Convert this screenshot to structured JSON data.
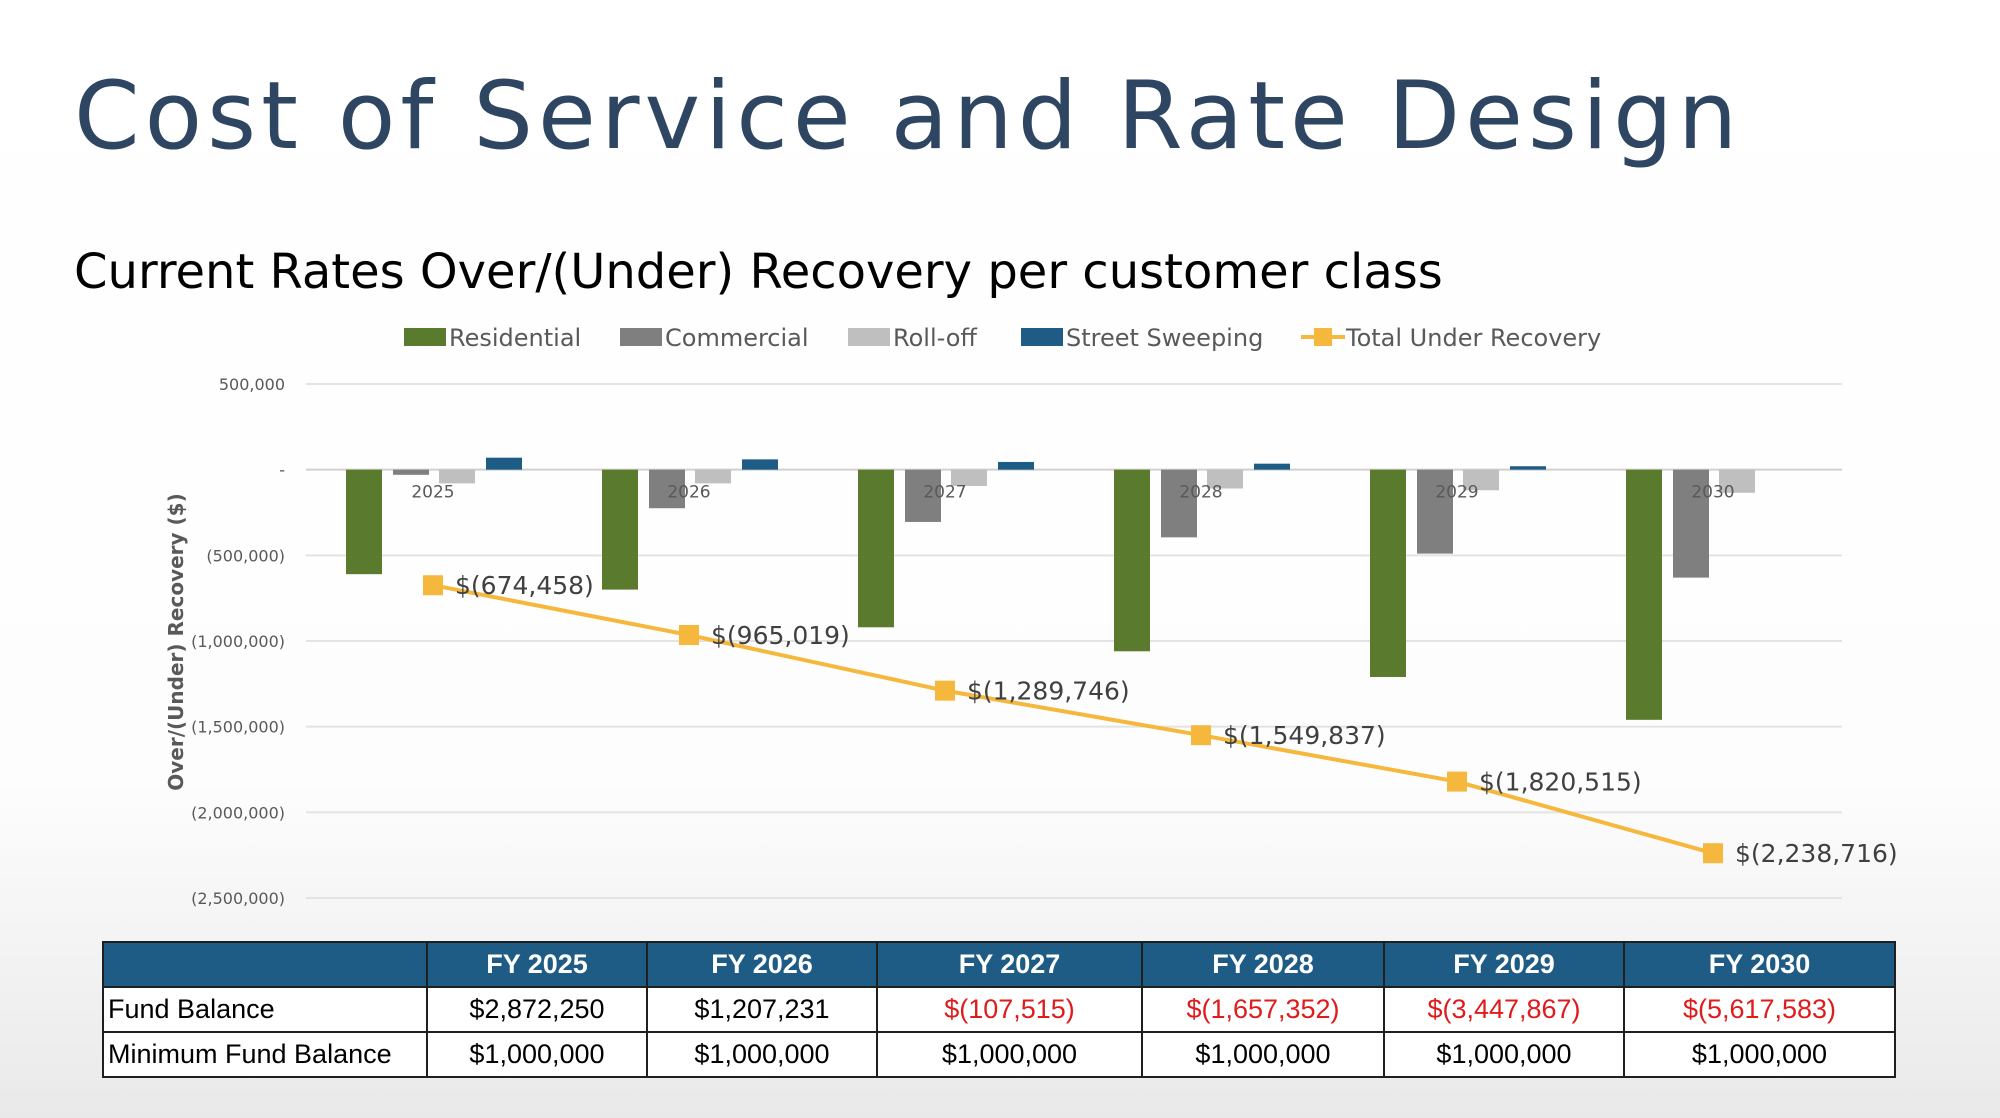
{
  "slide": {
    "title": "Cost of Service and Rate Design",
    "subtitle": "Current Rates Over/(Under) Recovery per customer class"
  },
  "colors": {
    "title": "#2f4663",
    "residential": "#5a7a2e",
    "commercial": "#7f7f7f",
    "rolloff": "#bfbfbf",
    "street_sweeping": "#1f5c85",
    "total": "#f5b83d",
    "table_header": "#1f5c85",
    "negative_text": "#e01b1b"
  },
  "chart_data": {
    "type": "bar",
    "title": "Current Rates Over/(Under) Recovery per customer class",
    "ylabel": "Over/(Under) Recovery ($)",
    "xlabel": "",
    "ylim": [
      -2500000,
      500000
    ],
    "yticks": [
      500000,
      0,
      -500000,
      -1000000,
      -1500000,
      -2000000,
      -2500000
    ],
    "ytick_labels": [
      "500,000",
      "-",
      "(500,000)",
      "(1,000,000)",
      "(1,500,000)",
      "(2,000,000)",
      "(2,500,000)"
    ],
    "grid": true,
    "legend_position": "top",
    "categories": [
      "2025",
      "2026",
      "2027",
      "2028",
      "2029",
      "2030"
    ],
    "series": [
      {
        "name": "Residential",
        "kind": "bar",
        "color_key": "residential",
        "values": [
          -610000,
          -700000,
          -920000,
          -1060000,
          -1210000,
          -1460000
        ]
      },
      {
        "name": "Commercial",
        "kind": "bar",
        "color_key": "commercial",
        "values": [
          -30000,
          -225000,
          -305000,
          -395000,
          -490000,
          -630000
        ]
      },
      {
        "name": "Roll-off",
        "kind": "bar",
        "color_key": "rolloff",
        "values": [
          -80000,
          -80000,
          -95000,
          -110000,
          -120000,
          -135000
        ]
      },
      {
        "name": "Street Sweeping",
        "kind": "bar",
        "color_key": "street_sweeping",
        "values": [
          70000,
          60000,
          45000,
          35000,
          20000,
          0
        ]
      },
      {
        "name": "Total Under Recovery",
        "kind": "line",
        "color_key": "total",
        "values": [
          -674458,
          -965019,
          -1289746,
          -1549837,
          -1820515,
          -2238716
        ],
        "data_labels": [
          "$(674,458)",
          "$(965,019)",
          "$(1,289,746)",
          "$(1,549,837)",
          "$(1,820,515)",
          "$(2,238,716)"
        ]
      }
    ]
  },
  "table": {
    "headers": [
      "",
      "FY 2025",
      "FY 2026",
      "FY 2027",
      "FY 2028",
      "FY 2029",
      "FY 2030"
    ],
    "rows": [
      {
        "label": "Fund Balance",
        "cells": [
          {
            "value": "$2,872,250",
            "negative": false
          },
          {
            "value": "$1,207,231",
            "negative": false
          },
          {
            "value": "$(107,515)",
            "negative": true
          },
          {
            "value": "$(1,657,352)",
            "negative": true
          },
          {
            "value": "$(3,447,867)",
            "negative": true
          },
          {
            "value": "$(5,617,583)",
            "negative": true
          }
        ]
      },
      {
        "label": "Minimum Fund Balance",
        "cells": [
          {
            "value": "$1,000,000",
            "negative": false
          },
          {
            "value": "$1,000,000",
            "negative": false
          },
          {
            "value": "$1,000,000",
            "negative": false
          },
          {
            "value": "$1,000,000",
            "negative": false
          },
          {
            "value": "$1,000,000",
            "negative": false
          },
          {
            "value": "$1,000,000",
            "negative": false
          }
        ]
      }
    ]
  }
}
